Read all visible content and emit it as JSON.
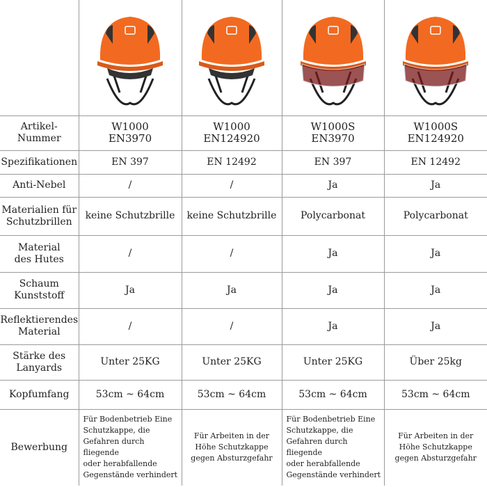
{
  "colors": {
    "helmet": "#f26a21",
    "grid": "#9a9a9a"
  },
  "products": [
    {
      "image": "orange-helmet-no-visor"
    },
    {
      "image": "orange-helmet-no-visor"
    },
    {
      "image": "orange-helmet-with-visor"
    },
    {
      "image": "orange-helmet-with-visor"
    }
  ],
  "rows": [
    {
      "label": "Artikel-\nNummer",
      "values": [
        "W1000\nEN3970",
        "W1000\nEN124920",
        "W1000S\nEN3970",
        "W1000S\nEN124920"
      ]
    },
    {
      "label": "Spezifikationen",
      "values": [
        "EN 397",
        "EN 12492",
        "EN 397",
        "EN 12492"
      ]
    },
    {
      "label": "Anti-Nebel",
      "values": [
        "/",
        "/",
        "Ja",
        "Ja"
      ]
    },
    {
      "label": "Materialien für\nSchutzbrillen",
      "values": [
        "keine Schutzbrille",
        "keine Schutzbrille",
        "Polycarbonat",
        "Polycarbonat"
      ]
    },
    {
      "label": "Material\ndes Hutes",
      "values": [
        "/",
        "/",
        "Ja",
        "Ja"
      ]
    },
    {
      "label": "Schaum\nKunststoff",
      "values": [
        "Ja",
        "Ja",
        "Ja",
        "Ja"
      ]
    },
    {
      "label": "Reflektierendes\nMaterial",
      "values": [
        "/",
        "/",
        "Ja",
        "Ja"
      ]
    },
    {
      "label": "Stärke des\nLanyards",
      "values": [
        "Unter 25KG",
        "Unter 25KG",
        "Unter 25KG",
        "Über 25kg"
      ]
    },
    {
      "label": "Kopfumfang",
      "values": [
        "53cm ~ 64cm",
        "53cm ~ 64cm",
        "53cm ~ 64cm",
        "53cm ~ 64cm"
      ]
    },
    {
      "label": "Bewerbung",
      "values": [
        "Für Bodenbetrieb Eine\nSchutzkappe, die\nGefahren durch fliegende\noder herabfallende\nGegenstände verhindert",
        "Für Arbeiten in der\nHöhe Schutzkappe\ngegen Absturzgefahr",
        "Für Bodenbetrieb Eine\nSchutzkappe, die\nGefahren durch fliegende\noder herabfallende\nGegenstände verhindert",
        "Für Arbeiten in der\nHöhe Schutzkappe\ngegen Absturzgefahr"
      ]
    }
  ]
}
